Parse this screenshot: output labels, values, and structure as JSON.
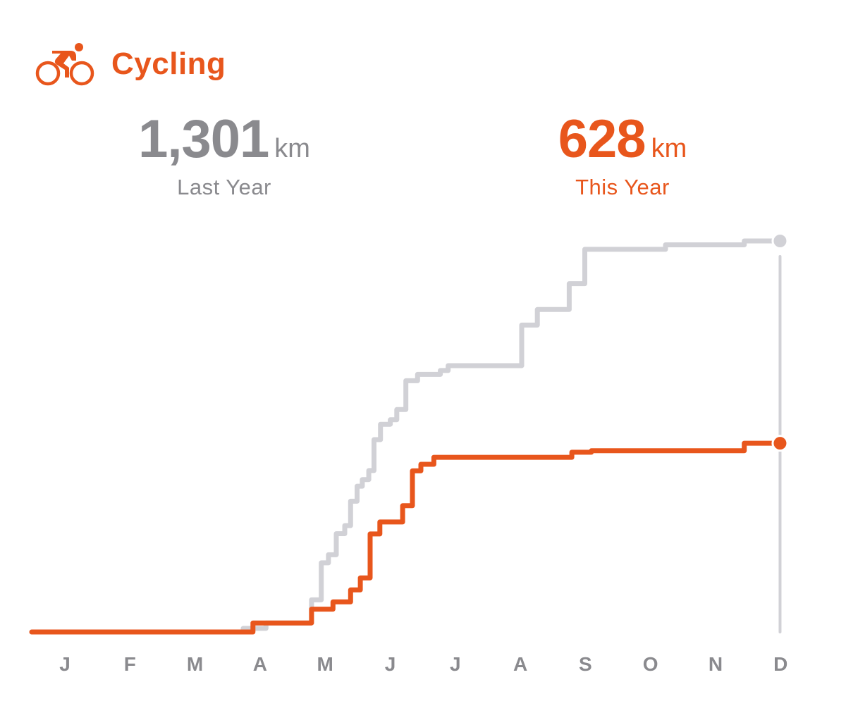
{
  "header": {
    "title": "Cycling",
    "icon": "cycling-icon",
    "accent_color": "#e8561c"
  },
  "stats": {
    "last_year": {
      "value": "1,301",
      "unit": "km",
      "caption": "Last Year",
      "color": "#8a8a8e"
    },
    "this_year": {
      "value": "628",
      "unit": "km",
      "caption": "This Year",
      "color": "#e8561c"
    }
  },
  "chart_data": {
    "type": "line",
    "title": "",
    "xlabel": "",
    "ylabel": "",
    "x_unit": "month",
    "xlim": [
      0,
      11.5
    ],
    "ylim": [
      0,
      1301
    ],
    "categories": [
      "J",
      "F",
      "M",
      "A",
      "M",
      "J",
      "J",
      "A",
      "S",
      "O",
      "N",
      "D"
    ],
    "grid": false,
    "series": [
      {
        "name": "Last Year",
        "color": "#d1d1d6",
        "step": true,
        "points": [
          [
            0,
            0
          ],
          [
            3.25,
            0
          ],
          [
            3.25,
            12
          ],
          [
            3.6,
            12
          ],
          [
            3.6,
            30
          ],
          [
            4.3,
            30
          ],
          [
            4.3,
            107
          ],
          [
            4.45,
            107
          ],
          [
            4.45,
            230
          ],
          [
            4.56,
            230
          ],
          [
            4.56,
            257
          ],
          [
            4.68,
            257
          ],
          [
            4.68,
            327
          ],
          [
            4.81,
            327
          ],
          [
            4.81,
            354
          ],
          [
            4.9,
            354
          ],
          [
            4.9,
            435
          ],
          [
            5.0,
            435
          ],
          [
            5.0,
            485
          ],
          [
            5.08,
            485
          ],
          [
            5.08,
            507
          ],
          [
            5.18,
            507
          ],
          [
            5.18,
            537
          ],
          [
            5.26,
            537
          ],
          [
            5.26,
            640
          ],
          [
            5.36,
            640
          ],
          [
            5.36,
            691
          ],
          [
            5.51,
            691
          ],
          [
            5.51,
            706
          ],
          [
            5.61,
            706
          ],
          [
            5.61,
            740
          ],
          [
            5.75,
            740
          ],
          [
            5.75,
            836
          ],
          [
            5.93,
            836
          ],
          [
            5.93,
            857
          ],
          [
            6.28,
            857
          ],
          [
            6.28,
            870
          ],
          [
            6.4,
            870
          ],
          [
            6.4,
            886
          ],
          [
            7.53,
            886
          ],
          [
            7.53,
            1021
          ],
          [
            7.77,
            1021
          ],
          [
            7.77,
            1073
          ],
          [
            8.26,
            1073
          ],
          [
            8.26,
            1159
          ],
          [
            8.5,
            1159
          ],
          [
            8.5,
            1273
          ],
          [
            9.74,
            1273
          ],
          [
            9.74,
            1288
          ],
          [
            10.95,
            1288
          ],
          [
            10.95,
            1301
          ]
        ]
      },
      {
        "name": "This Year",
        "color": "#e8561c",
        "step": true,
        "points": [
          [
            0,
            0
          ],
          [
            3.4,
            0
          ],
          [
            3.4,
            30
          ],
          [
            4.3,
            30
          ],
          [
            4.3,
            76
          ],
          [
            4.63,
            76
          ],
          [
            4.63,
            100
          ],
          [
            4.9,
            100
          ],
          [
            4.9,
            140
          ],
          [
            5.05,
            140
          ],
          [
            5.05,
            180
          ],
          [
            5.2,
            180
          ],
          [
            5.2,
            326
          ],
          [
            5.35,
            326
          ],
          [
            5.35,
            366
          ],
          [
            5.7,
            366
          ],
          [
            5.7,
            420
          ],
          [
            5.85,
            420
          ],
          [
            5.85,
            536
          ],
          [
            5.98,
            536
          ],
          [
            5.98,
            558
          ],
          [
            6.18,
            558
          ],
          [
            6.18,
            581
          ],
          [
            8.3,
            581
          ],
          [
            8.3,
            598
          ],
          [
            8.6,
            598
          ],
          [
            8.6,
            603
          ],
          [
            10.95,
            603
          ],
          [
            10.95,
            628
          ]
        ]
      }
    ],
    "legend": "none"
  }
}
